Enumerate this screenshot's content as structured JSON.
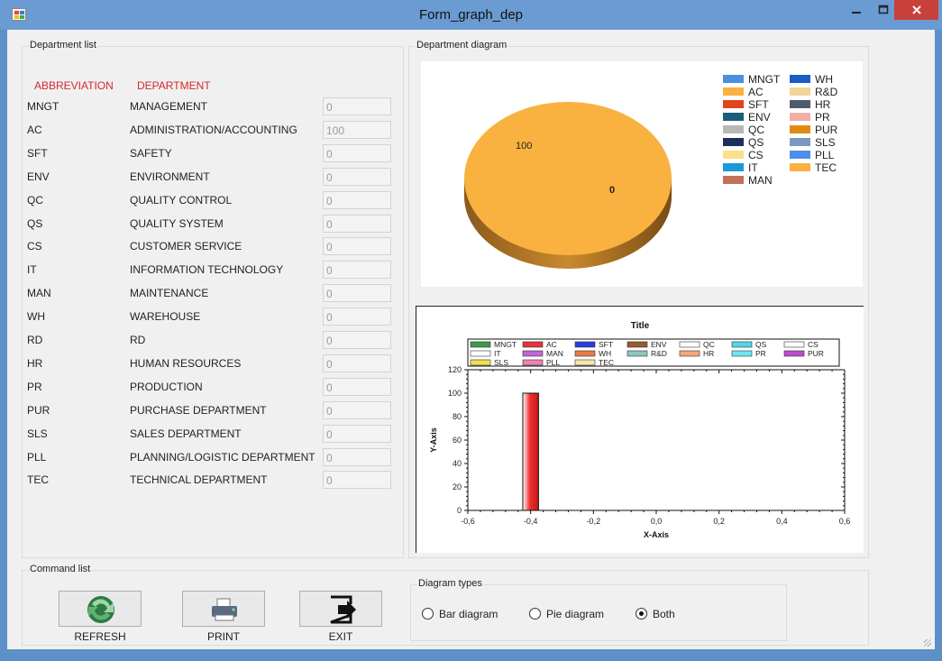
{
  "window": {
    "title": "Form_graph_dep"
  },
  "department_list": {
    "group_label": "Department list",
    "header_abbreviation": "ABBREVIATION",
    "header_department": "DEPARTMENT",
    "rows": [
      {
        "abbr": "MNGT",
        "name": "MANAGEMENT",
        "value": "0"
      },
      {
        "abbr": "AC",
        "name": "ADMINISTRATION/ACCOUNTING",
        "value": "100"
      },
      {
        "abbr": "SFT",
        "name": "SAFETY",
        "value": "0"
      },
      {
        "abbr": "ENV",
        "name": "ENVIRONMENT",
        "value": "0"
      },
      {
        "abbr": "QC",
        "name": "QUALITY CONTROL",
        "value": "0"
      },
      {
        "abbr": "QS",
        "name": "QUALITY SYSTEM",
        "value": "0"
      },
      {
        "abbr": "CS",
        "name": "CUSTOMER SERVICE",
        "value": "0"
      },
      {
        "abbr": "IT",
        "name": "INFORMATION TECHNOLOGY",
        "value": "0"
      },
      {
        "abbr": "MAN",
        "name": "MAINTENANCE",
        "value": "0"
      },
      {
        "abbr": "WH",
        "name": "WAREHOUSE",
        "value": "0"
      },
      {
        "abbr": "RD",
        "name": "RD",
        "value": "0"
      },
      {
        "abbr": "HR",
        "name": "HUMAN RESOURCES",
        "value": "0"
      },
      {
        "abbr": "PR",
        "name": "PRODUCTION",
        "value": "0"
      },
      {
        "abbr": "PUR",
        "name": "PURCHASE DEPARTMENT",
        "value": "0"
      },
      {
        "abbr": "SLS",
        "name": "SALES DEPARTMENT",
        "value": "0"
      },
      {
        "abbr": "PLL",
        "name": "PLANNING/LOGISTIC DEPARTMENT",
        "value": "0"
      },
      {
        "abbr": "TEC",
        "name": "TECHNICAL DEPARTMENT",
        "value": "0"
      }
    ]
  },
  "diagram": {
    "group_label": "Department diagram",
    "pie_legend": [
      {
        "label": "MNGT",
        "color": "#4a8fe0"
      },
      {
        "label": "AC",
        "color": "#f9b140"
      },
      {
        "label": "SFT",
        "color": "#e0451c"
      },
      {
        "label": "ENV",
        "color": "#1b5e7a"
      },
      {
        "label": "QC",
        "color": "#b8b8b8"
      },
      {
        "label": "QS",
        "color": "#1a2f5e"
      },
      {
        "label": "CS",
        "color": "#f9e08a"
      },
      {
        "label": "IT",
        "color": "#1b9ad8"
      },
      {
        "label": "MAN",
        "color": "#c0735a"
      },
      {
        "label": "WH",
        "color": "#1a5cc7"
      },
      {
        "label": "R&D",
        "color": "#efd597"
      },
      {
        "label": "HR",
        "color": "#4e5a6e"
      },
      {
        "label": "PR",
        "color": "#eeb1a6"
      },
      {
        "label": "PUR",
        "color": "#e08a14"
      },
      {
        "label": "SLS",
        "color": "#7d98bd"
      },
      {
        "label": "PLL",
        "color": "#4e8eea"
      },
      {
        "label": "TEC",
        "color": "#f9b140"
      }
    ],
    "pie_labels": [
      "100",
      "0"
    ],
    "bar_legend": [
      {
        "label": "MNGT",
        "color": "#3c9b46"
      },
      {
        "label": "AC",
        "color": "#e8333b"
      },
      {
        "label": "SFT",
        "color": "#2c3ce0"
      },
      {
        "label": "ENV",
        "color": "#9a5a2a"
      },
      {
        "label": "QC",
        "color": "#ffffff"
      },
      {
        "label": "QS",
        "color": "#4fd8e8"
      },
      {
        "label": "CS",
        "color": "#ffffff"
      },
      {
        "label": "IT",
        "color": "#ffffff"
      },
      {
        "label": "MAN",
        "color": "#c065d8"
      },
      {
        "label": "WH",
        "color": "#e87a4a"
      },
      {
        "label": "R&D",
        "color": "#8fc5c0"
      },
      {
        "label": "HR",
        "color": "#f5a878"
      },
      {
        "label": "PR",
        "color": "#6ae8f0"
      },
      {
        "label": "PUR",
        "color": "#c04ad0"
      },
      {
        "label": "SLS",
        "color": "#f0e04a"
      },
      {
        "label": "PLL",
        "color": "#f080b8"
      },
      {
        "label": "TEC",
        "color": "#f8e6b0"
      }
    ]
  },
  "chart_data": [
    {
      "type": "pie",
      "values": [
        {
          "label": "AC",
          "value": 100
        },
        {
          "label": "MNGT",
          "value": 0
        }
      ]
    },
    {
      "type": "bar",
      "title": "Title",
      "xlabel": "X-Axis",
      "ylabel": "Y-Axis",
      "xlim": [
        -0.6,
        0.6
      ],
      "ylim": [
        0,
        120
      ],
      "xticks": [
        "-0,6",
        "-0,4",
        "-0,2",
        "0,0",
        "0,2",
        "0,4",
        "0,6"
      ],
      "yticks": [
        "0",
        "20",
        "40",
        "60",
        "80",
        "100",
        "120"
      ],
      "bars": [
        {
          "x": -0.4,
          "value": 100,
          "width": 0.05
        }
      ]
    }
  ],
  "commands": {
    "group_label": "Command list",
    "refresh": "REFRESH",
    "print": "PRINT",
    "exit": "EXIT"
  },
  "diagram_types": {
    "group_label": "Diagram types",
    "options": [
      "Bar diagram",
      "Pie diagram",
      "Both"
    ],
    "selected": "Both"
  }
}
